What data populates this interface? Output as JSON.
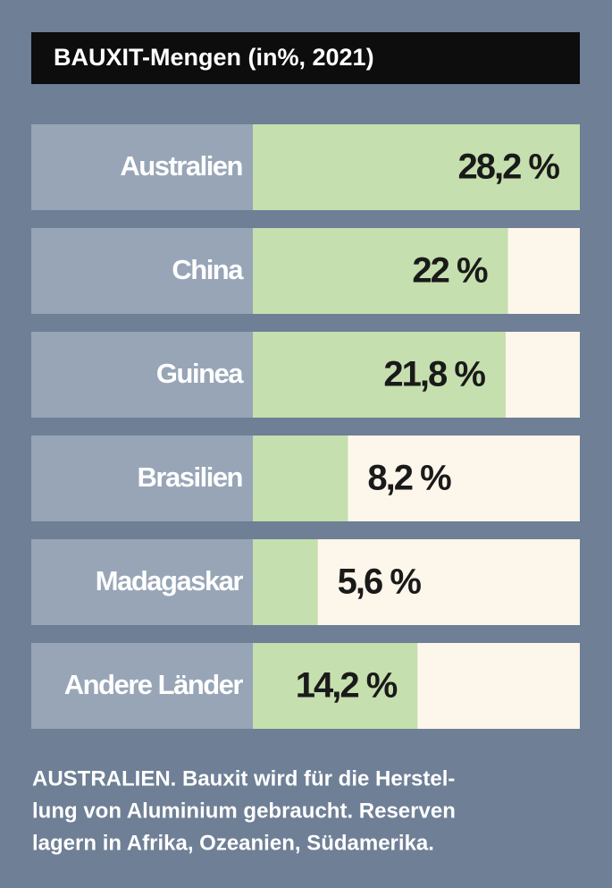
{
  "chart_data": {
    "type": "bar",
    "orientation": "horizontal",
    "title": "BAUXIT-Mengen (in%, 2021)",
    "categories": [
      "Australien",
      "China",
      "Guinea",
      "Brasilien",
      "Madagaskar",
      "Andere Länder"
    ],
    "values": [
      28.2,
      22,
      21.8,
      8.2,
      5.6,
      14.2
    ],
    "value_labels": [
      "28,2 %",
      "22 %",
      "21,8 %",
      "8,2 %",
      "5,6 %",
      "14,2 %"
    ],
    "color": "#c5dfae",
    "xlim": [
      0,
      28.2
    ],
    "footnote": [
      "AUSTRALIEN. Bauxit wird für die Herstel-",
      "lung von Aluminium gebraucht. Reserven",
      "lagern in Afrika, Ozeanien, Südamerika."
    ]
  }
}
